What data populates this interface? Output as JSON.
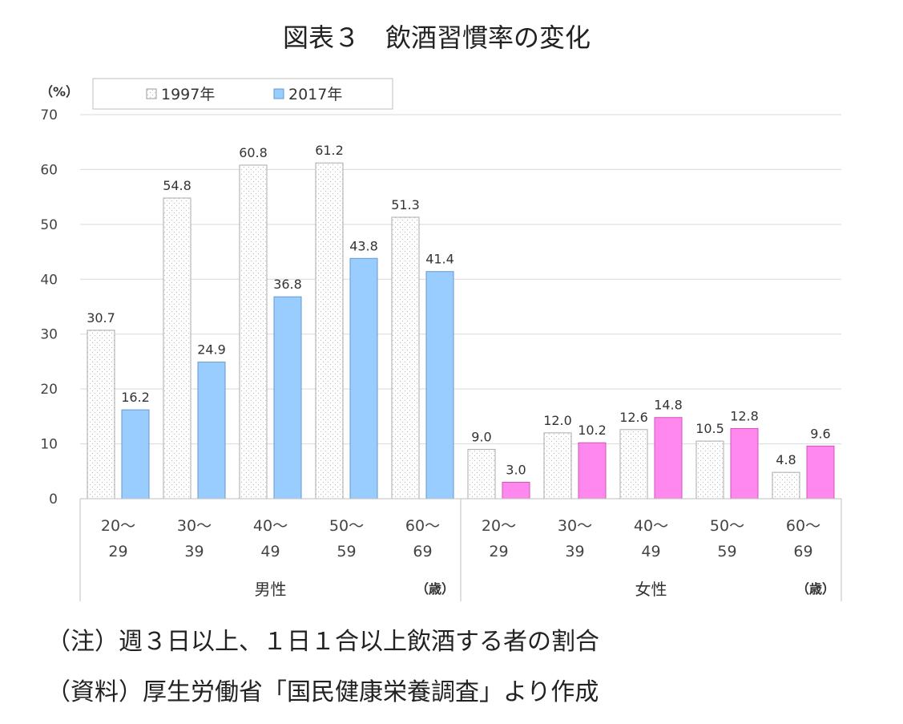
{
  "title": "図表３　飲酒習慣率の変化",
  "notes": {
    "note1": "（注）週３日以上、１日１合以上飲酒する者の割合",
    "note2": "（資料）厚生労働省「国民健康栄養調査」より作成"
  },
  "units": {
    "y": "（%）",
    "x_male": "（歳）",
    "x_female": "（歳）"
  },
  "colors": {
    "series_1997": "#ffffff",
    "series_2017_male": "#99ccff",
    "series_2017_female": "#ff88ee",
    "grid": "#d9d9d9"
  },
  "chart_data": {
    "type": "bar",
    "ylim": [
      0,
      70
    ],
    "yticks": [
      0,
      10,
      20,
      30,
      40,
      50,
      60,
      70
    ],
    "grid": true,
    "legend_position": "top-left",
    "groups": [
      {
        "name": "男性",
        "categories": [
          {
            "line1": "20〜",
            "line2": "29"
          },
          {
            "line1": "30〜",
            "line2": "39"
          },
          {
            "line1": "40〜",
            "line2": "49"
          },
          {
            "line1": "50〜",
            "line2": "59"
          },
          {
            "line1": "60〜",
            "line2": "69"
          }
        ],
        "series": [
          {
            "name": "1997年",
            "values": [
              30.7,
              54.8,
              60.8,
              61.2,
              51.3
            ]
          },
          {
            "name": "2017年",
            "values": [
              16.2,
              24.9,
              36.8,
              43.8,
              41.4
            ]
          }
        ]
      },
      {
        "name": "女性",
        "categories": [
          {
            "line1": "20〜",
            "line2": "29"
          },
          {
            "line1": "30〜",
            "line2": "39"
          },
          {
            "line1": "40〜",
            "line2": "49"
          },
          {
            "line1": "50〜",
            "line2": "59"
          },
          {
            "line1": "60〜",
            "line2": "69"
          }
        ],
        "series": [
          {
            "name": "1997年",
            "values": [
              9.0,
              12.0,
              12.6,
              10.5,
              4.8
            ]
          },
          {
            "name": "2017年",
            "values": [
              3.0,
              10.2,
              14.8,
              12.8,
              9.6
            ]
          }
        ]
      }
    ],
    "legend": [
      "1997年",
      "2017年"
    ]
  }
}
